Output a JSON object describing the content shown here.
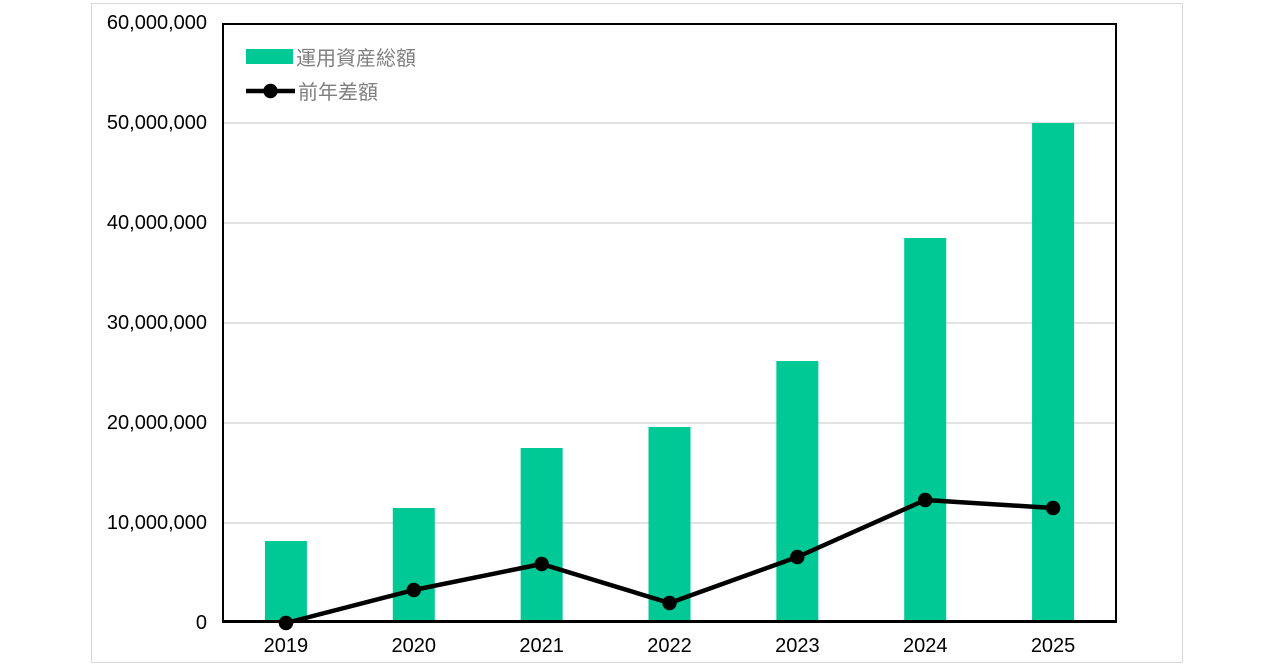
{
  "chart_data": {
    "type": "combo-bar-line",
    "categories": [
      "2019",
      "2020",
      "2021",
      "2022",
      "2023",
      "2024",
      "2025"
    ],
    "series": [
      {
        "name": "運用資産総額",
        "type": "bar",
        "color": "#00C995",
        "values": [
          8200000,
          11500000,
          17500000,
          19600000,
          26200000,
          38500000,
          50000000
        ]
      },
      {
        "name": "前年差額",
        "type": "line",
        "color": "#000000",
        "values": [
          0,
          3300000,
          5900000,
          2000000,
          6600000,
          12300000,
          11500000
        ]
      }
    ],
    "title": "",
    "xlabel": "",
    "ylabel": "",
    "ylim": [
      0,
      60000000
    ],
    "ytick_interval": 10000000,
    "ytick_labels": [
      "0",
      "10,000,000",
      "20,000,000",
      "30,000,000",
      "40,000,000",
      "50,000,000",
      "60,000,000"
    ],
    "grid": true,
    "legend_position": "top-left-inside"
  },
  "colors": {
    "background": "#FFFFFF",
    "bar": "#00C995",
    "line": "#000000",
    "grid": "#D9D9D9",
    "plot_border": "#000000",
    "frame_border": "#D7D7D7",
    "axis_text": "#000000",
    "legend_text": "#7F7F7F"
  }
}
